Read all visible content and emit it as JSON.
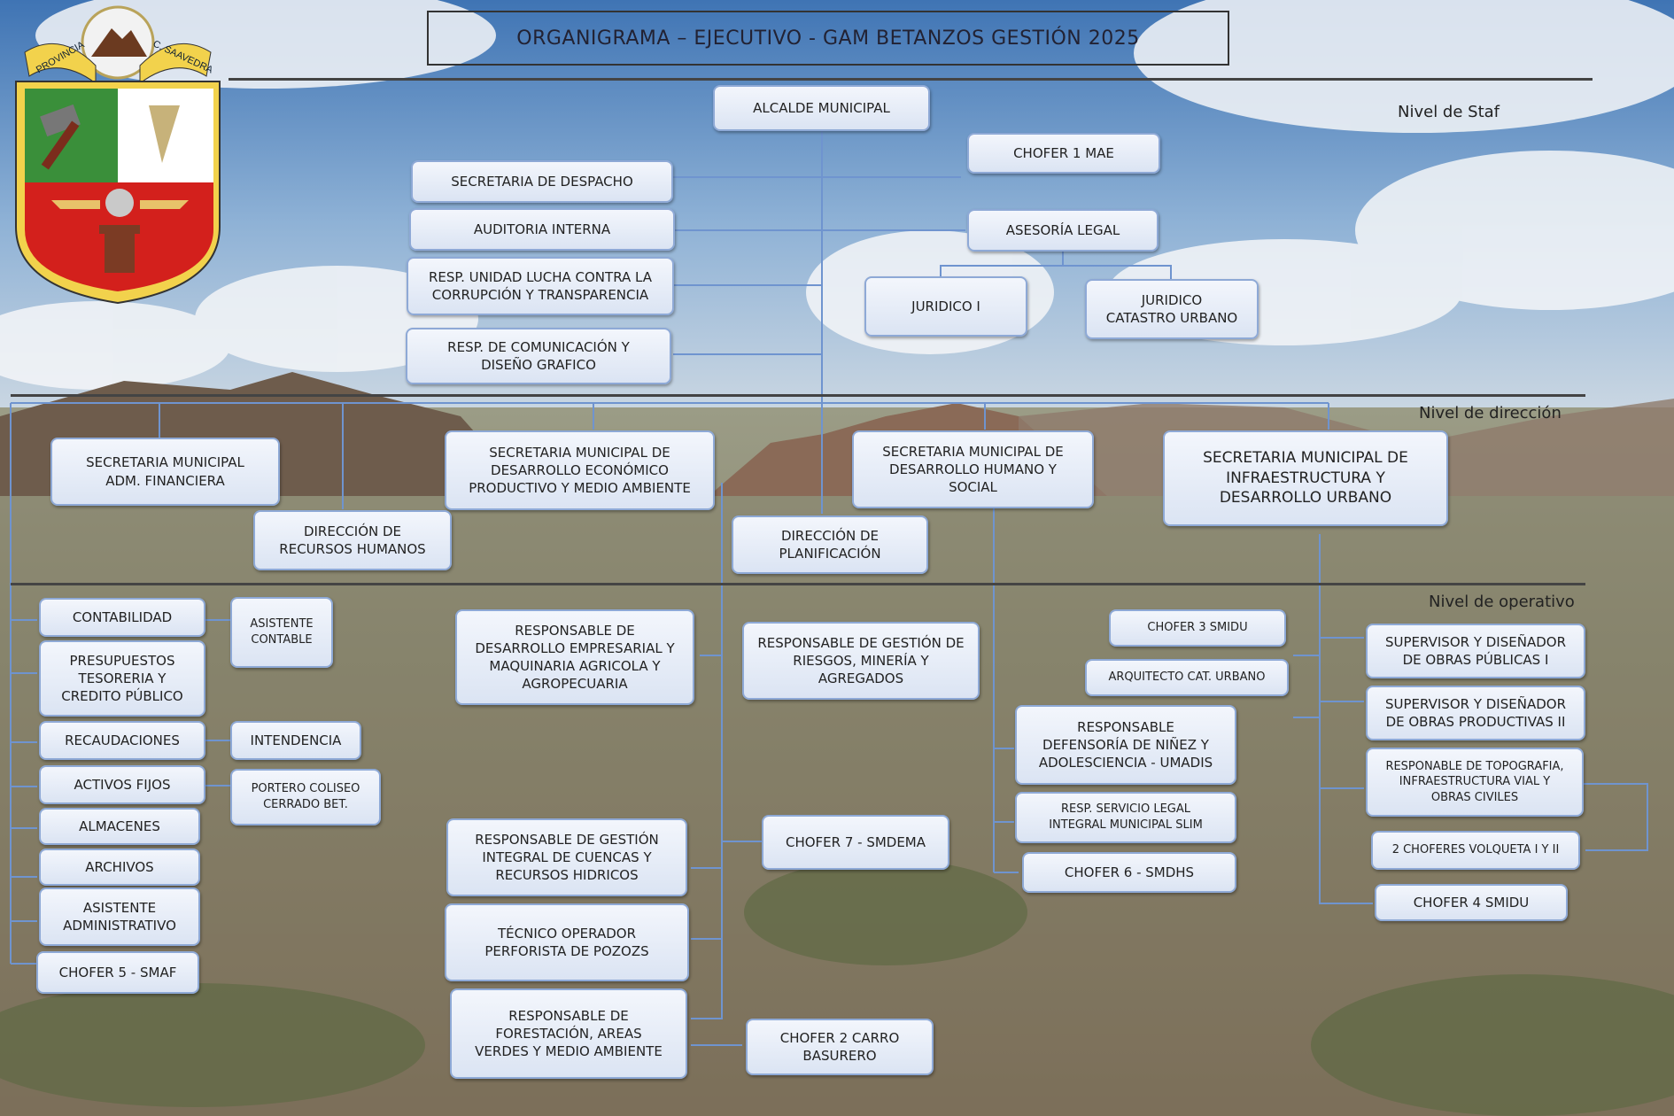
{
  "title": "ORGANIGRAMA – EJECUTIVO - GAM BETANZOS GESTIÓN 2025",
  "logo": {
    "icon": "coat-of-arms-icon",
    "ribbon_left": "PROVINCIA",
    "ribbon_right": "C. SAAVEDRA"
  },
  "levels": {
    "staff": "Nivel de Staf",
    "direccion": "Nivel de dirección",
    "operativo": "Nivel de operativo"
  },
  "staff": {
    "alcalde": "ALCALDE MUNICIPAL",
    "chofer1": "CHOFER  1 MAE",
    "secretaria_despacho": "SECRETARIA DE DESPACHO",
    "auditoria": "AUDITORIA INTERNA",
    "asesoria": "ASESORÍA LEGAL",
    "lucha_corrupcion": "RESP. UNIDAD LUCHA CONTRA LA\nCORRUPCIÓN Y TRANSPARENCIA",
    "juridico1": "JURIDICO I",
    "juridico_catastro": "JURIDICO\nCATASTRO URBANO",
    "comunicacion": "RESP. DE COMUNICACIÓN Y\nDISEÑO GRAFICO"
  },
  "direccion": {
    "adm_financiera": "SECRETARIA MUNICIPAL\nADM. FINANCIERA",
    "desarrollo_economico": "SECRETARIA MUNICIPAL DE\nDESARROLLO ECONÓMICO\nPRODUCTIVO Y MEDIO AMBIENTE",
    "desarrollo_humano": "SECRETARIA MUNICIPAL DE\nDESARROLLO HUMANO Y\nSOCIAL",
    "infraestructura": "SECRETARIA MUNICIPAL DE\nINFRAESTRUCTURA Y\nDESARROLLO URBANO",
    "rrhh": "DIRECCIÓN DE\nRECURSOS HUMANOS",
    "planificacion": "DIRECCIÓN DE\nPLANIFICACIÓN"
  },
  "operativo": {
    "contabilidad": "CONTABILIDAD",
    "asistente_contable": "ASISTENTE\nCONTABLE",
    "presupuestos": "PRESUPUESTOS\nTESORERIA Y\nCREDITO PÚBLICO",
    "recaudaciones": "RECAUDACIONES",
    "intendencia": "INTENDENCIA",
    "activos_fijos": "ACTIVOS FIJOS",
    "portero": "PORTERO COLISEO\nCERRADO BET.",
    "almacenes": "ALMACENES",
    "archivos": "ARCHIVOS",
    "asistente_adm": "ASISTENTE\nADMINISTRATIVO",
    "chofer5": "CHOFER 5  - SMAF",
    "desarrollo_empresarial": "RESPONSABLE DE\nDESARROLLO EMPRESARIAL Y\nMAQUINARIA AGRICOLA Y\nAGROPECUARIA",
    "gestion_riesgos": "RESPONSABLE DE GESTIÓN DE\nRIESGOS, MINERÍA Y\nAGREGADOS",
    "cuencas": "RESPONSABLE DE GESTIÓN\nINTEGRAL DE CUENCAS Y\nRECURSOS HIDRICOS",
    "chofer7": "CHOFER 7 - SMDEMA",
    "perforista": "TÉCNICO OPERADOR\nPERFORISTA DE POZOZS",
    "forestacion": "RESPONSABLE DE\nFORESTACIÓN, AREAS\nVERDES Y MEDIO AMBIENTE",
    "chofer2": "CHOFER 2 CARRO\nBASURERO",
    "chofer3": "CHOFER 3 SMIDU",
    "arquitecto": "ARQUITECTO CAT. URBANO",
    "defensoria": "RESPONSABLE\nDEFENSORÍA DE NIÑEZ Y\nADOLESCIENCIA - UMADIS",
    "slim": "RESP. SERVICIO LEGAL\nINTEGRAL MUNICIPAL SLIM",
    "chofer6": "CHOFER 6 - SMDHS",
    "supervisor1": "SUPERVISOR Y DISEÑADOR\nDE OBRAS PÚBLICAS I",
    "supervisor2": "SUPERVISOR Y DISEÑADOR\nDE OBRAS PRODUCTIVAS II",
    "topografia": "RESPONABLE DE TOPOGRAFIA,\nINFRAESTRUCTURA VIAL Y\nOBRAS CIVILES",
    "volqueta": "2 CHOFERES VOLQUETA I Y II",
    "chofer4": "CHOFER 4 SMIDU"
  },
  "colors": {
    "node_border": "#8ea9d6",
    "connector": "#6f94cf",
    "separator": "#444444"
  }
}
